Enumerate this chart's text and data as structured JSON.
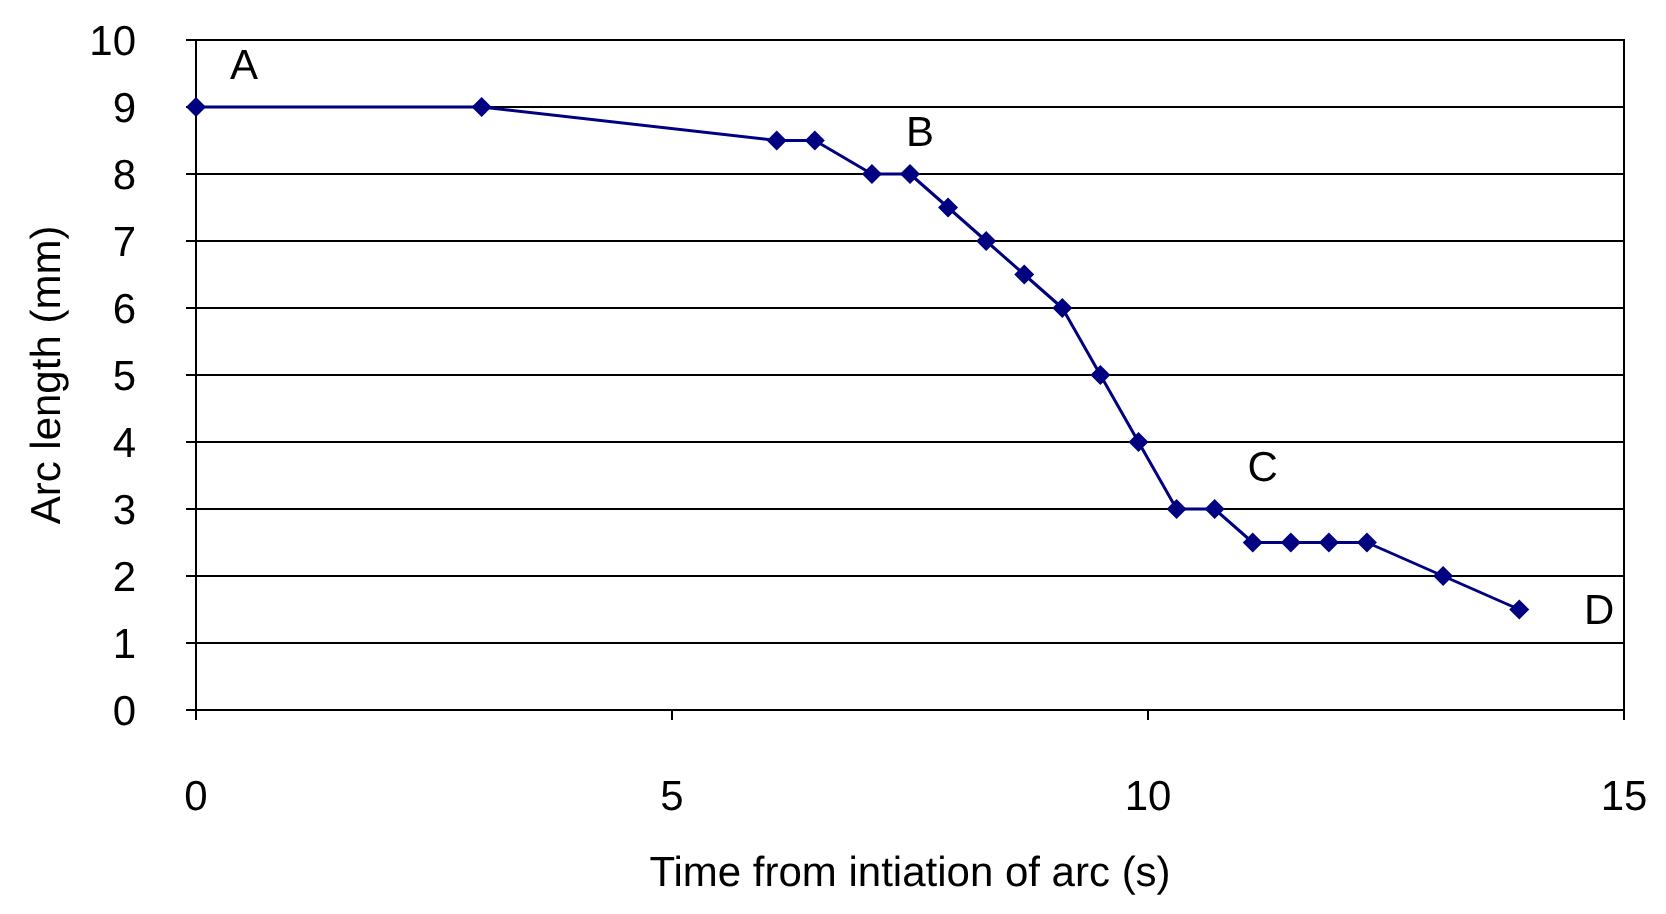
{
  "chart_data": {
    "type": "line",
    "xlabel": "Time from intiation of arc (s)",
    "ylabel": "Arc length (mm)",
    "x": [
      0,
      3,
      6.1,
      6.5,
      7.1,
      7.5,
      7.9,
      8.3,
      8.7,
      9.1,
      9.5,
      9.9,
      10.3,
      10.7,
      11.1,
      11.5,
      11.9,
      12.3,
      13.1,
      13.9
    ],
    "values": [
      9,
      9,
      8.5,
      8.5,
      8,
      8,
      7.5,
      7,
      6.5,
      6,
      5,
      4,
      3,
      3,
      2.5,
      2.5,
      2.5,
      2.5,
      2,
      1.5
    ],
    "color": "#000080",
    "marker": "diamond",
    "line_style": "solid",
    "grid": "y",
    "xlim": [
      0,
      15
    ],
    "xticks": [
      0,
      5,
      10,
      15
    ],
    "ylim": [
      0,
      10
    ],
    "yticks": [
      0,
      1,
      2,
      3,
      4,
      5,
      6,
      7,
      8,
      9,
      10
    ],
    "annotations": [
      {
        "text": "A",
        "x": 0,
        "y": 9
      },
      {
        "text": "B",
        "x": 7.1,
        "y": 8
      },
      {
        "text": "C",
        "x": 10.7,
        "y": 3
      },
      {
        "text": "D",
        "x": 13.9,
        "y": 1.5
      }
    ]
  }
}
